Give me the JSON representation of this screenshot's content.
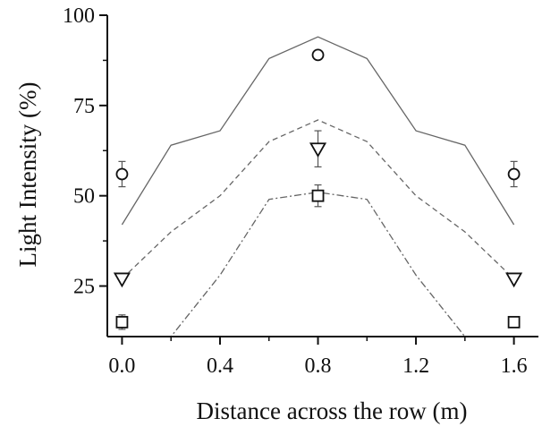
{
  "chart_data": {
    "type": "line",
    "xlabel": "Distance across the row (m)",
    "ylabel": "Light Intensity (%)",
    "xlim": [
      -0.06,
      1.7
    ],
    "ylim": [
      11,
      100
    ],
    "xticks": [
      0.0,
      0.4,
      0.8,
      1.2,
      1.6
    ],
    "xtick_labels": [
      "0.0",
      "0.4",
      "0.8",
      "1.2",
      "1.6"
    ],
    "yticks": [
      25,
      50,
      75,
      100
    ],
    "ytick_labels": [
      "25",
      "50",
      "75",
      "100"
    ],
    "grid": false,
    "legend": "none",
    "series": [
      {
        "kind": "line",
        "style": "solid",
        "x": [
          0.0,
          0.2,
          0.4,
          0.6,
          0.8,
          1.0,
          1.2,
          1.4,
          1.6
        ],
        "y": [
          42,
          64,
          68,
          88,
          94,
          88,
          68,
          64,
          42
        ]
      },
      {
        "kind": "line",
        "style": "dashed",
        "x": [
          0.0,
          0.2,
          0.4,
          0.6,
          0.8,
          1.0,
          1.2,
          1.4,
          1.6
        ],
        "y": [
          27,
          40,
          50,
          65,
          71,
          65,
          50,
          40,
          27
        ]
      },
      {
        "kind": "line",
        "style": "dash-dot",
        "x": [
          0.0,
          0.2,
          0.4,
          0.6,
          0.8,
          1.0,
          1.2,
          1.4,
          1.6
        ],
        "y": [
          11,
          11,
          28,
          49,
          51,
          49,
          28,
          11,
          11
        ]
      },
      {
        "kind": "scatter",
        "marker": "circle",
        "x": [
          0.0,
          0.8,
          1.6
        ],
        "y": [
          56,
          89,
          56
        ],
        "err": [
          3.5,
          0,
          3.5
        ]
      },
      {
        "kind": "scatter",
        "marker": "triangle-down",
        "x": [
          0.0,
          0.8,
          1.6
        ],
        "y": [
          27,
          63,
          27
        ],
        "err": [
          0,
          5,
          0
        ]
      },
      {
        "kind": "scatter",
        "marker": "square",
        "x": [
          0.0,
          0.8,
          1.6
        ],
        "y": [
          15,
          50,
          15
        ],
        "err": [
          2,
          3,
          0
        ]
      }
    ]
  }
}
